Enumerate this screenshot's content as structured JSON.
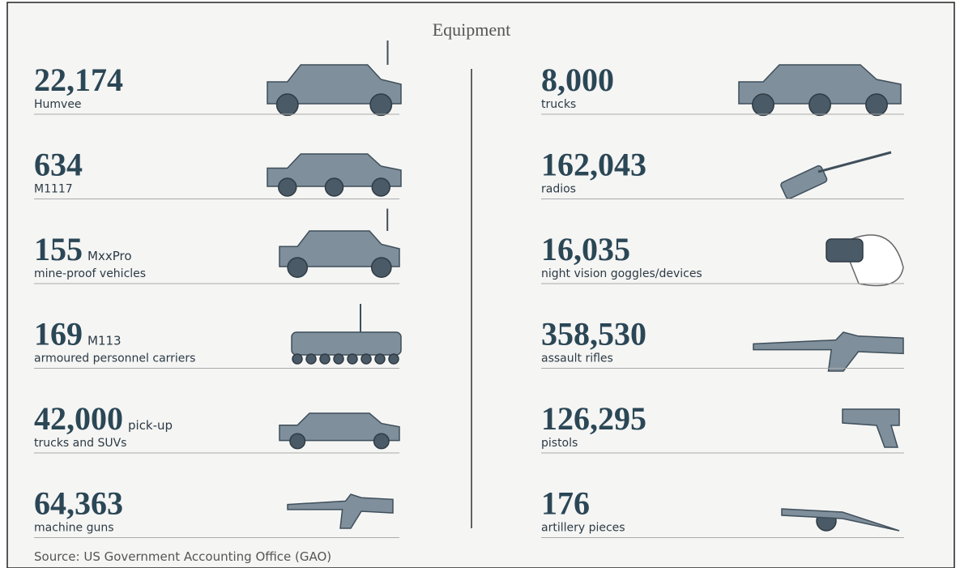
{
  "title": "Equipment",
  "left": [
    {
      "count": "22,174",
      "label": "Humvee"
    },
    {
      "count": "634",
      "label": "M1117"
    },
    {
      "count": "155",
      "inline": "MxxPro",
      "label": "mine-proof vehicles"
    },
    {
      "count": "169",
      "inline": "M113",
      "label": "armoured personnel carriers"
    },
    {
      "count": "42,000",
      "inline": "pick-up",
      "label": "trucks and SUVs"
    },
    {
      "count": "64,363",
      "label": "machine guns"
    }
  ],
  "right": [
    {
      "count": "8,000",
      "label": "trucks"
    },
    {
      "count": "162,043",
      "label": "radios"
    },
    {
      "count": "16,035",
      "label": "night vision goggles/devices"
    },
    {
      "count": "358,530",
      "label": "assault rifles"
    },
    {
      "count": "126,295",
      "label": "pistols"
    },
    {
      "count": "176",
      "label": "artillery pieces"
    }
  ],
  "source": "Source: US Government Accounting Office (GAO)"
}
